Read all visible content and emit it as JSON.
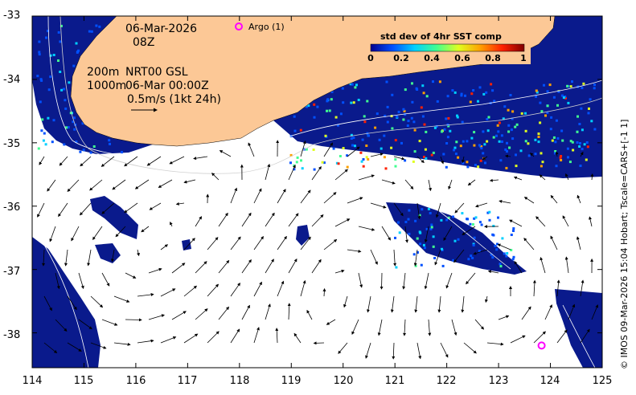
{
  "map": {
    "date": "06-Mar-2026",
    "hour": "08Z",
    "line_200m": "200m",
    "line_1000m": "1000m",
    "product": "NRT00 GSL",
    "product_time": "06-Mar 00:00Z",
    "scale_label": "0.5m/s (1kt 24h)",
    "argo_label": "Argo (1)",
    "credit": "© IMOS 09-Mar-2026 15:04 Hobart; Tscale=CARS+[-1 1]"
  },
  "colorbar": {
    "title": "std dev of 4hr SST comp",
    "ticks": [
      "0",
      "0.2",
      "0.4",
      "0.6",
      "0.8",
      "1"
    ],
    "colors": [
      "#00008f",
      "#0050ff",
      "#00d0ff",
      "#40ff90",
      "#e0ff20",
      "#ffa000",
      "#ff2000",
      "#800000"
    ]
  },
  "axes": {
    "x_ticks": [
      "114",
      "115",
      "116",
      "117",
      "118",
      "119",
      "120",
      "121",
      "122",
      "123",
      "124",
      "125"
    ],
    "y_ticks": [
      "-33",
      "-34",
      "-35",
      "-36",
      "-37",
      "-38"
    ],
    "lon_range": [
      114,
      125
    ],
    "lat_range": [
      -38.55,
      -33
    ]
  },
  "colors": {
    "land": "#fcc896",
    "ocean_data": "#0a1a8c",
    "argo": "#ff00ff"
  },
  "argo_floats": [
    {
      "lon": 123.83,
      "lat": -38.2
    }
  ],
  "labeled_argo": {
    "lon": 118.0,
    "lat": -33.18
  }
}
